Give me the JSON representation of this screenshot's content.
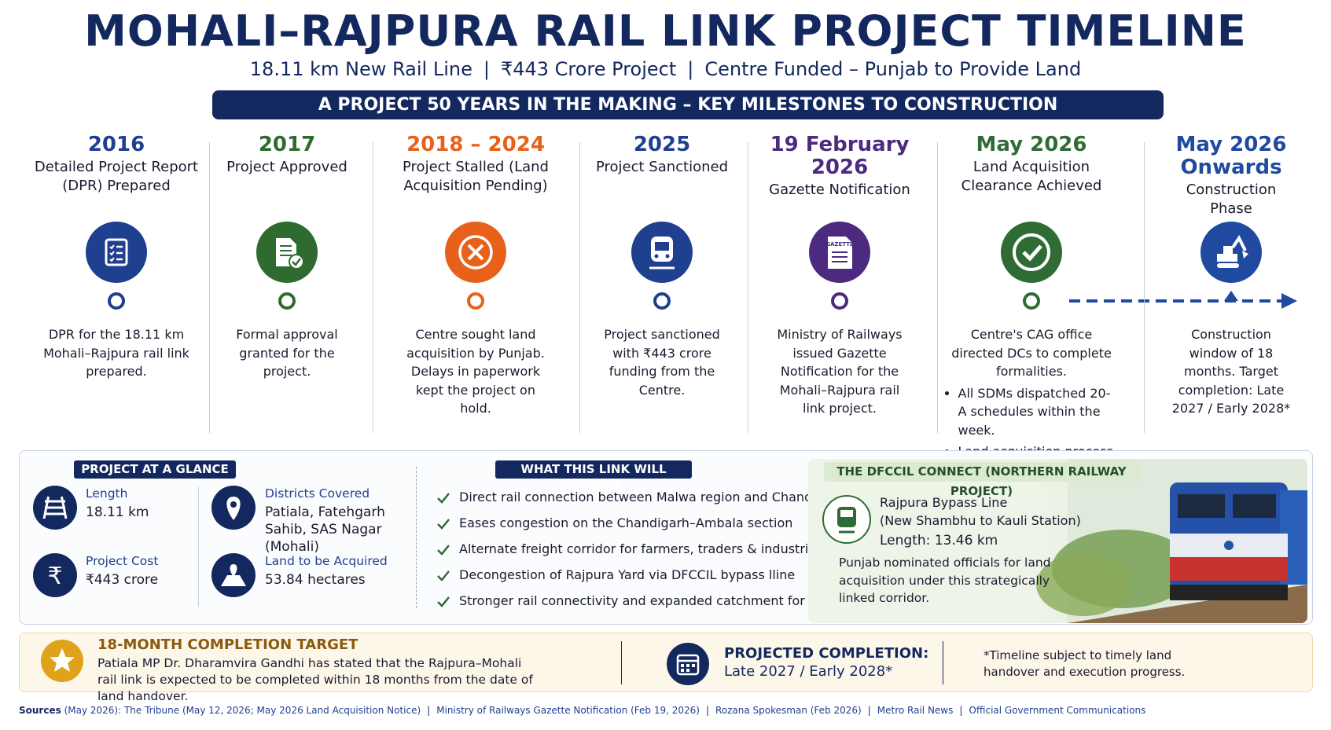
{
  "header": {
    "title": "MOHALI–RAJPURA RAIL LINK PROJECT TIMELINE",
    "subtitle": [
      "18.11 km New Rail Line",
      "₹443 Crore Project",
      "Centre Funded – Punjab to Provide Land"
    ],
    "banner": "A PROJECT 50 YEARS IN THE MAKING – KEY MILESTONES TO CONSTRUCTION"
  },
  "milestones": [
    {
      "date": "2016",
      "title": "Detailed Project Report (DPR) Prepared",
      "color": "#1f3f8f",
      "description": "DPR for the 18.11 km Mohali–Rajpura rail link prepared."
    },
    {
      "date": "2017",
      "title": "Project Approved",
      "color": "#2f6b2f",
      "description": "Formal approval granted for the project."
    },
    {
      "date": "2018 – 2024",
      "title": "Project Stalled (Land Acquisition Pending)",
      "color": "#e8611a",
      "description": "Centre sought land acquisition by Punjab. Delays in paperwork kept the project on hold."
    },
    {
      "date": "2025",
      "title": "Project Sanctioned",
      "color": "#1f3f8f",
      "description": "Project sanctioned with ₹443 crore funding from the Centre."
    },
    {
      "date": "19 February 2026",
      "title": "Gazette Notification",
      "color": "#4b2a7f",
      "icon_text": "GAZETTE",
      "description": "Ministry of Railways issued Gazette Notification for the Mohali–Rajpura rail link project."
    },
    {
      "date": "May 2026",
      "title": "Land Acquisition Clearance Achieved",
      "color": "#2f6b35",
      "description": "Centre's CAG office directed DCs to complete formalities.",
      "bullets": [
        "All SDMs dispatched 20-A schedules within the week.",
        "Land acquisition process now cleared."
      ]
    },
    {
      "date": "May 2026 Onwards",
      "title": "Construction Phase",
      "color": "#1f4aa0",
      "description": "Construction window of 18 months. Target completion: Late 2027 / Early 2028*"
    }
  ],
  "glance": {
    "heading": "PROJECT AT A GLANCE",
    "items": [
      {
        "label": "Length",
        "value": "18.11 km"
      },
      {
        "label": "Districts Covered",
        "value": "Patiala, Fatehgarh Sahib, SAS Nagar (Mohali)"
      },
      {
        "label": "Project Cost",
        "value": "₹443 crore"
      },
      {
        "label": "Land to be Acquired",
        "value": "53.84 hectares"
      }
    ]
  },
  "deliver": {
    "heading": "WHAT THIS LINK WILL DELIVER",
    "items": [
      "Direct rail connection between Malwa region and Chandigarh",
      "Eases congestion on the Chandigarh–Ambala section",
      "Alternate freight corridor for farmers, traders & industries",
      "Decongestion of Rajpura Yard via DFCCIL bypass lline",
      "Stronger rail connectivity and expanded catchment for Mohali"
    ]
  },
  "dfccil": {
    "heading": "THE DFCCIL CONNECT (NORTHERN RAILWAY PROJECT)",
    "line": "Rajpura Bypass Line",
    "line_sub": "(New Shambhu to Kauli Station)",
    "length": "Length: 13.46 km",
    "note": "Punjab nominated officials for land acquisition under this strategically linked corridor."
  },
  "target": {
    "heading": "18-MONTH COMPLETION TARGET",
    "text": "Patiala MP Dr. Dharamvira Gandhi has stated that the Rajpura–Mohali rail link is expected to be completed within 18 months from the date of land handover."
  },
  "projected": {
    "heading": "PROJECTED COMPLETION:",
    "value": "Late 2027 / Early 2028*"
  },
  "footnote": "*Timeline subject to timely land handover and execution progress.",
  "sources": {
    "label": "Sources",
    "items": [
      "(May 2026): The Tribune (May 12, 2026; May 2026 Land Acquisition Notice)",
      "Ministry of Railways Gazette Notification (Feb 19, 2026)",
      "Rozana Spokesman (Feb 2026)",
      "Metro Rail News",
      "Official Government Communications"
    ]
  }
}
